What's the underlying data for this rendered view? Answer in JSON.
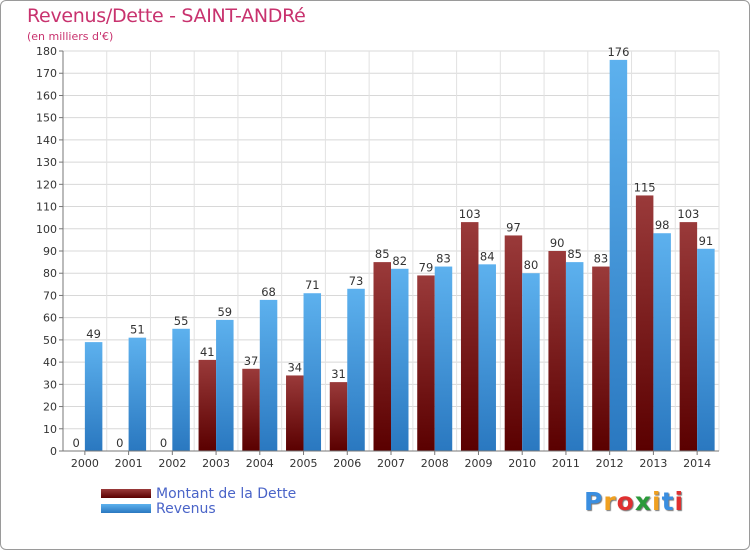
{
  "header": {
    "title": "Revenus/Dette - SAINT-ANDRé",
    "subtitle": "(en milliers d'€)"
  },
  "chart_data": {
    "type": "bar",
    "categories": [
      "2000",
      "2001",
      "2002",
      "2003",
      "2004",
      "2005",
      "2006",
      "2007",
      "2008",
      "2009",
      "2010",
      "2011",
      "2012",
      "2013",
      "2014"
    ],
    "series": [
      {
        "name": "Montant de la Dette",
        "values": [
          0,
          0,
          0,
          41,
          37,
          34,
          31,
          85,
          79,
          103,
          97,
          90,
          83,
          115,
          103
        ],
        "color": "#7a1a1a"
      },
      {
        "name": "Revenus",
        "values": [
          49,
          51,
          55,
          59,
          68,
          71,
          73,
          82,
          83,
          84,
          80,
          85,
          176,
          98,
          91
        ],
        "color": "#3f99dd"
      }
    ],
    "ylim": [
      0,
      180
    ],
    "ytick_step": 10,
    "grid": true,
    "legend": "bottom-left"
  },
  "logo": {
    "letters": [
      "P",
      "r",
      "o",
      "x",
      "i",
      "t",
      "i"
    ],
    "colors": [
      "#3a8ee0",
      "#f0a020",
      "#e03030",
      "#2a9a3a",
      "#f0a020",
      "#3a8ee0",
      "#e03030"
    ]
  }
}
